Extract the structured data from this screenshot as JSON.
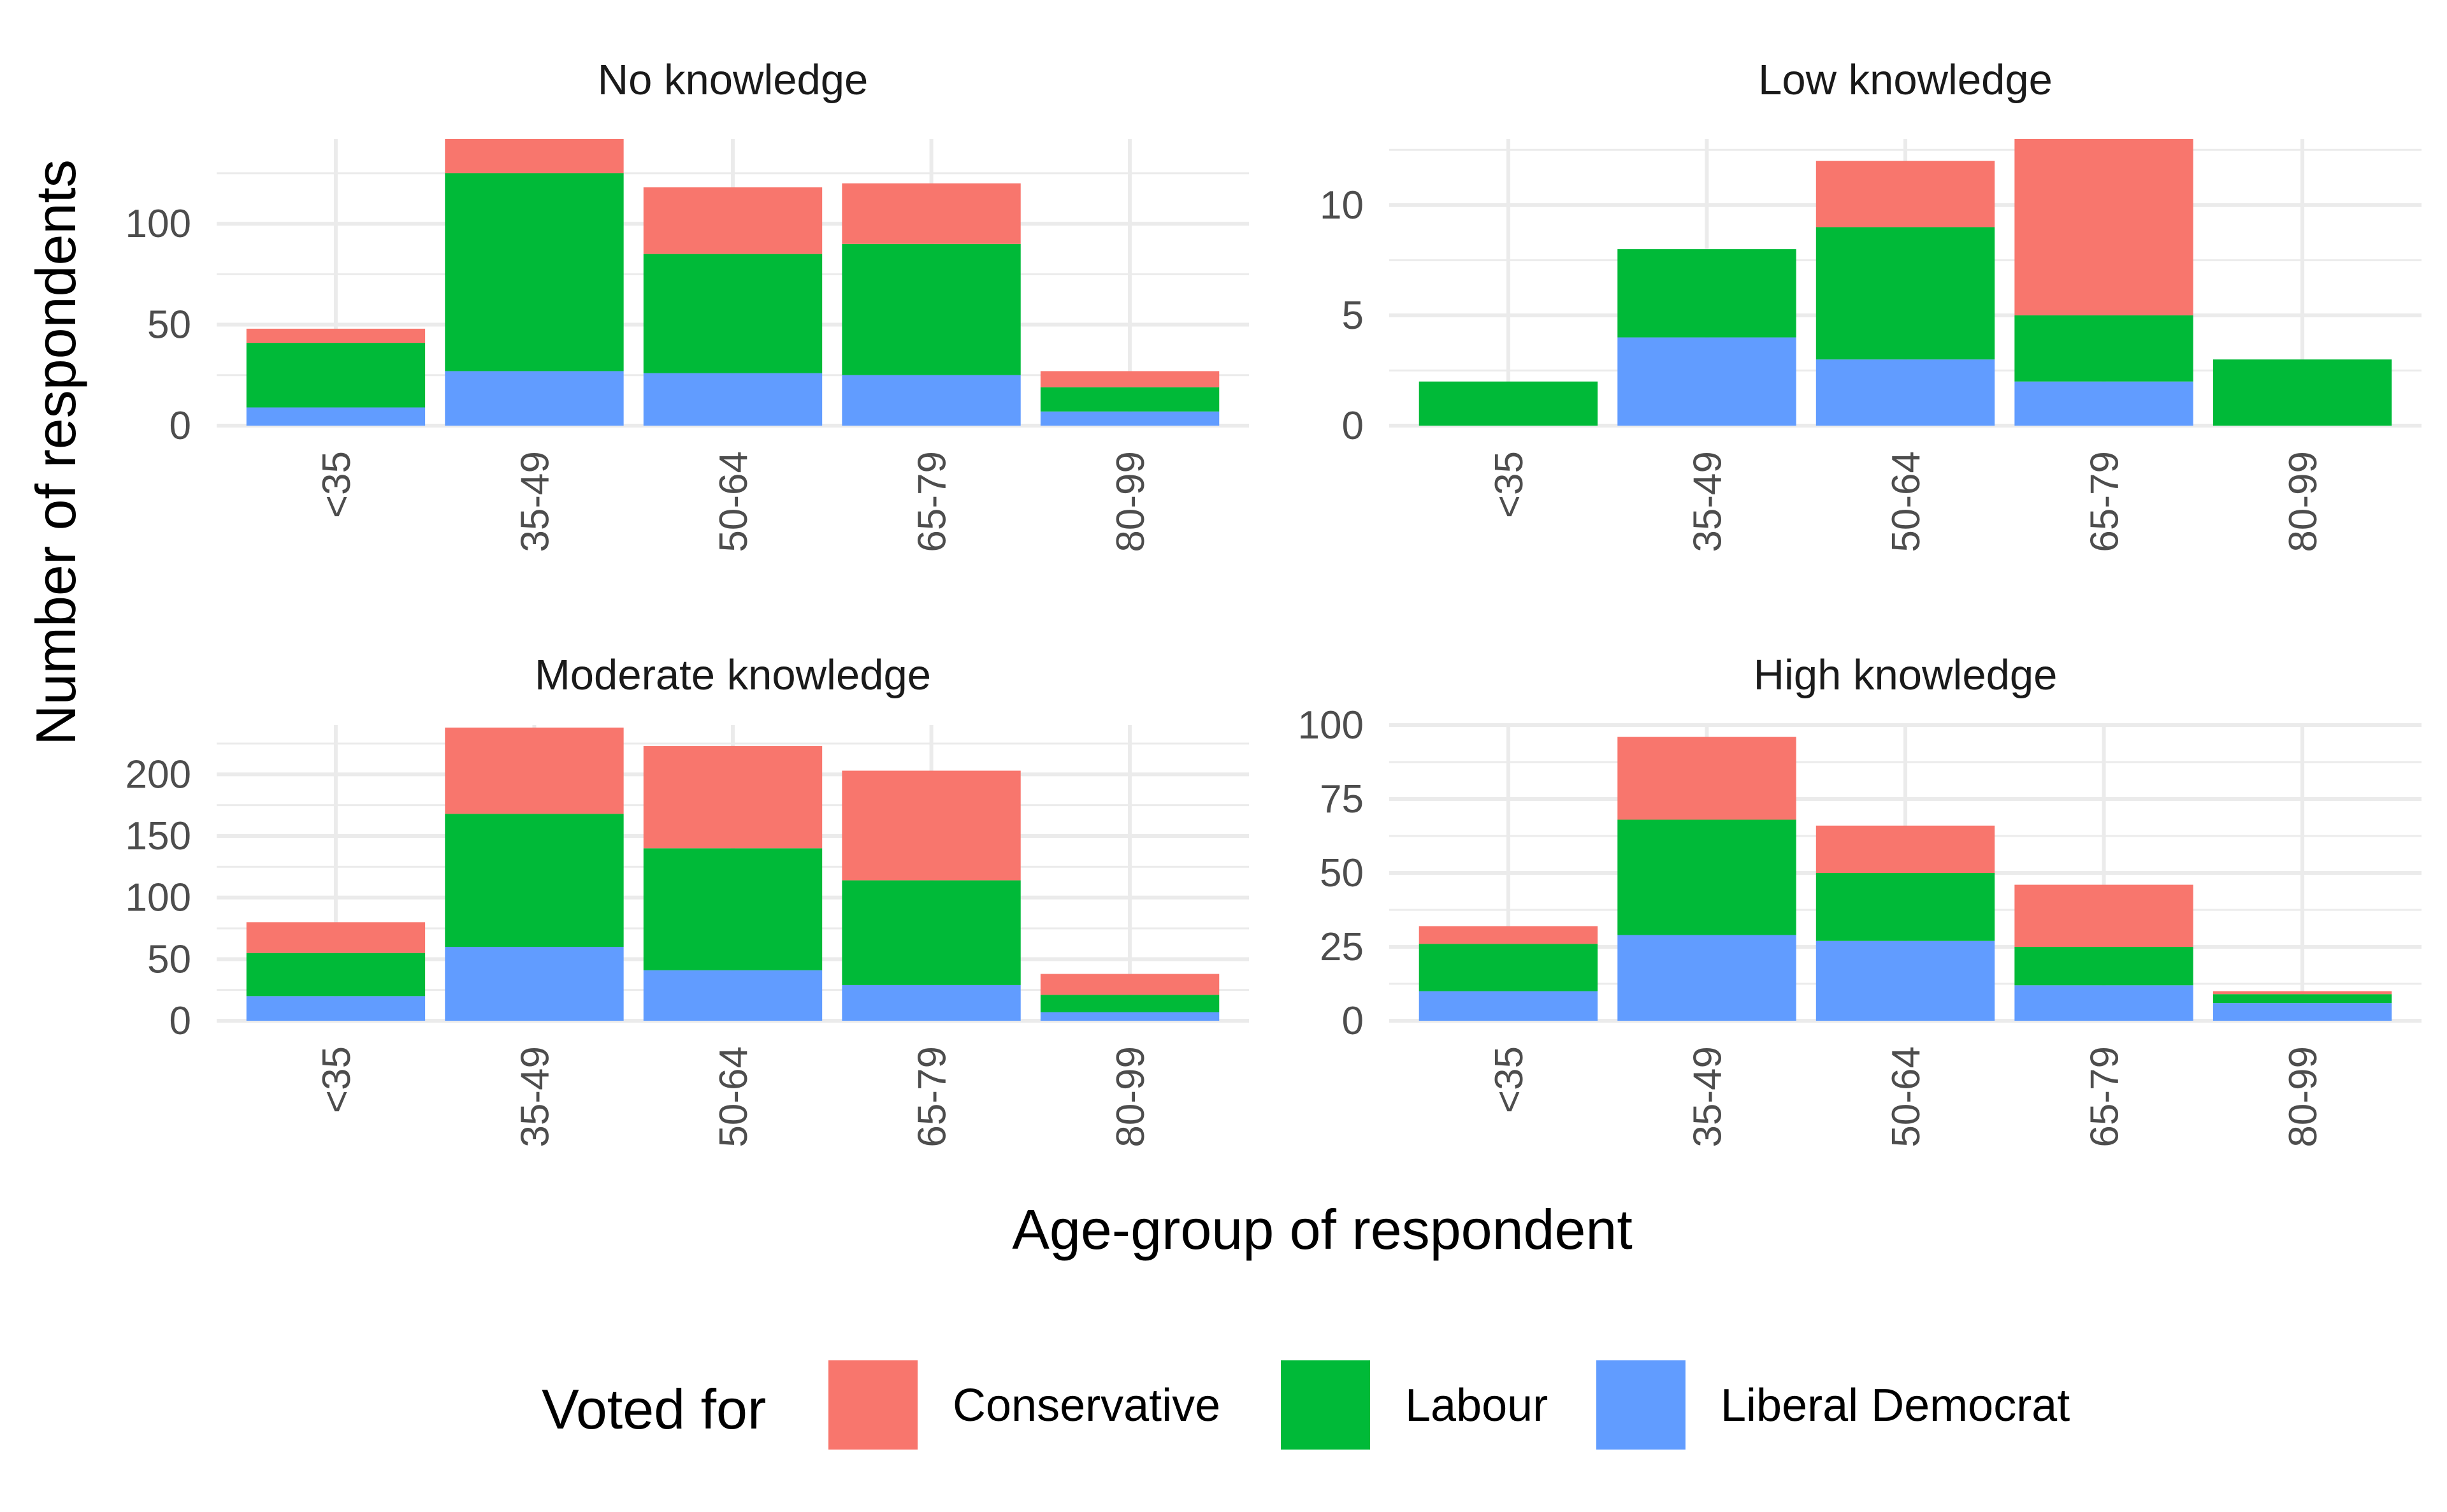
{
  "chart_data": {
    "type": "bar",
    "stacked": true,
    "facets": true,
    "xlabel": "Age-group of respondent",
    "ylabel": "Number of respondents",
    "categories": [
      "<35",
      "35-49",
      "50-64",
      "65-79",
      "80-99"
    ],
    "legend": {
      "title": "Voted for",
      "position": "bottom",
      "items": [
        {
          "name": "Conservative",
          "color": "#F8766D"
        },
        {
          "name": "Labour",
          "color": "#00BA38"
        },
        {
          "name": "Liberal Democrat",
          "color": "#619CFF"
        }
      ]
    },
    "grid": true,
    "panels": [
      {
        "title": "No knowledge",
        "ylim": [
          0,
          142
        ],
        "yticks": [
          0,
          50,
          100
        ],
        "series": [
          {
            "name": "Liberal Democrat",
            "values": [
              9,
              27,
              26,
              25,
              7
            ]
          },
          {
            "name": "Labour",
            "values": [
              32,
              98,
              59,
              65,
              12
            ]
          },
          {
            "name": "Conservative",
            "values": [
              7,
              17,
              33,
              30,
              8
            ]
          }
        ]
      },
      {
        "title": "Low knowledge",
        "ylim": [
          0,
          13
        ],
        "yticks": [
          0,
          5,
          10
        ],
        "series": [
          {
            "name": "Liberal Democrat",
            "values": [
              0,
              4,
              3,
              2,
              0
            ]
          },
          {
            "name": "Labour",
            "values": [
              2,
              4,
              6,
              3,
              3
            ]
          },
          {
            "name": "Conservative",
            "values": [
              0,
              0,
              3,
              8,
              0
            ]
          }
        ]
      },
      {
        "title": "Moderate knowledge",
        "ylim": [
          0,
          240
        ],
        "yticks": [
          0,
          50,
          100,
          150,
          200
        ],
        "series": [
          {
            "name": "Liberal Democrat",
            "values": [
              20,
              60,
              41,
              29,
              7
            ]
          },
          {
            "name": "Labour",
            "values": [
              35,
              108,
              99,
              85,
              14
            ]
          },
          {
            "name": "Conservative",
            "values": [
              25,
              70,
              83,
              89,
              17
            ]
          }
        ]
      },
      {
        "title": "High knowledge",
        "ylim": [
          0,
          100
        ],
        "yticks": [
          0,
          25,
          50,
          75,
          100
        ],
        "series": [
          {
            "name": "Liberal Democrat",
            "values": [
              10,
              29,
              27,
              12,
              6
            ]
          },
          {
            "name": "Labour",
            "values": [
              16,
              39,
              23,
              13,
              3
            ]
          },
          {
            "name": "Conservative",
            "values": [
              6,
              28,
              16,
              21,
              1
            ]
          }
        ]
      }
    ]
  }
}
